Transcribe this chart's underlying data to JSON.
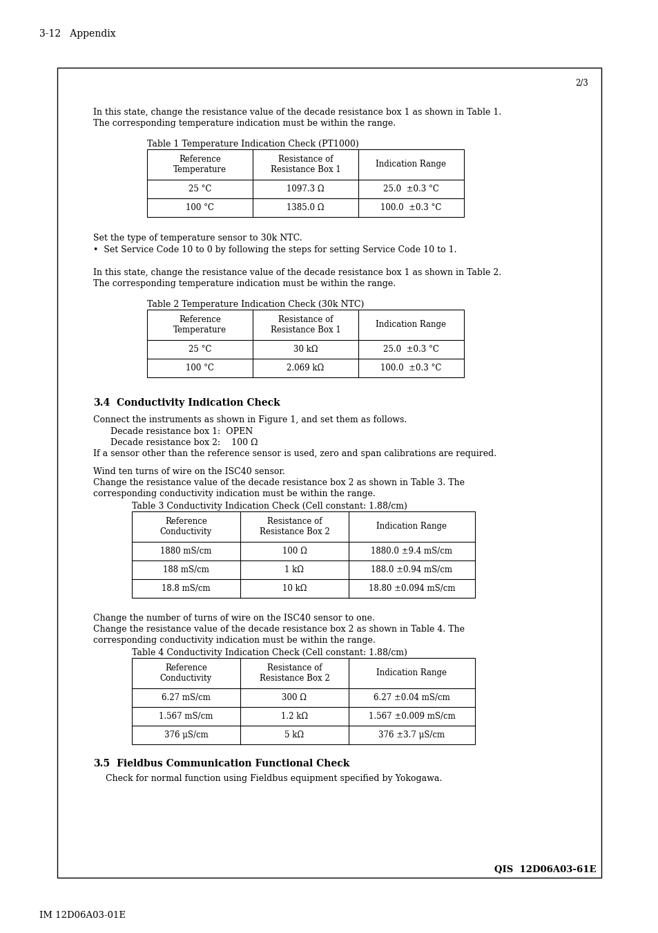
{
  "page_header": "3-12   Appendix",
  "page_footer": "IM 12D06A03-01E",
  "box_page_num": "2/3",
  "box_footer": "QIS  12D06A03-61E",
  "para1_line1": "In this state, change the resistance value of the decade resistance box 1 as shown in Table 1.",
  "para1_line2": "The corresponding temperature indication must be within the range.",
  "table1_title": "Table 1 Temperature Indication Check (PT1000)",
  "table1_headers": [
    "Reference\nTemperature",
    "Resistance of\nResistance Box 1",
    "Indication Range"
  ],
  "table1_rows": [
    [
      "25 °C",
      "1097.3 Ω",
      "25.0  ±0.3 °C"
    ],
    [
      "100 °C",
      "1385.0 Ω",
      "100.0  ±0.3 °C"
    ]
  ],
  "para2a": "Set the type of temperature sensor to 30k NTC.",
  "para2b": "•  Set Service Code 10 to 0 by following the steps for setting Service Code 10 to 1.",
  "para3_line1": "In this state, change the resistance value of the decade resistance box 1 as shown in Table 2.",
  "para3_line2": "The corresponding temperature indication must be within the range.",
  "table2_title": "Table 2 Temperature Indication Check (30k NTC)",
  "table2_headers": [
    "Reference\nTemperature",
    "Resistance of\nResistance Box 1",
    "Indication Range"
  ],
  "table2_rows": [
    [
      "25 °C",
      "30 kΩ",
      "25.0  ±0.3 °C"
    ],
    [
      "100 °C",
      "2.069 kΩ",
      "100.0  ±0.3 °C"
    ]
  ],
  "section34_num": "3.4",
  "section34_text": "Conductivity Indication Check",
  "para4_line1": "Connect the instruments as shown in Figure 1, and set them as follows.",
  "para4a": "Decade resistance box 1:  OPEN",
  "para4b": "Decade resistance box 2:    100 Ω",
  "para4c": "If a sensor other than the reference sensor is used, zero and span calibrations are required.",
  "para5a": "Wind ten turns of wire on the ISC40 sensor.",
  "para5b_line1": "Change the resistance value of the decade resistance box 2 as shown in Table 3. The",
  "para5b_line2": "corresponding conductivity indication must be within the range.",
  "table3_title": "Table 3 Conductivity Indication Check (Cell constant: 1.88/cm)",
  "table3_headers": [
    "Reference\nConductivity",
    "Resistance of\nResistance Box 2",
    "Indication Range"
  ],
  "table3_rows": [
    [
      "1880 mS/cm",
      "100 Ω",
      "1880.0 ±9.4 mS/cm"
    ],
    [
      "188 mS/cm",
      "1 kΩ",
      "188.0 ±0.94 mS/cm"
    ],
    [
      "18.8 mS/cm",
      "10 kΩ",
      "18.80 ±0.094 mS/cm"
    ]
  ],
  "para6a": "Change the number of turns of wire on the ISC40 sensor to one.",
  "para6b_line1": "Change the resistance value of the decade resistance box 2 as shown in Table 4. The",
  "para6b_line2": "corresponding conductivity indication must be within the range.",
  "table4_title": "Table 4 Conductivity Indication Check (Cell constant: 1.88/cm)",
  "table4_headers": [
    "Reference\nConductivity",
    "Resistance of\nResistance Box 2",
    "Indication Range"
  ],
  "table4_rows": [
    [
      "6.27 mS/cm",
      "300 Ω",
      "6.27 ±0.04 mS/cm"
    ],
    [
      "1.567 mS/cm",
      "1.2 kΩ",
      "1.567 ±0.009 mS/cm"
    ],
    [
      "376 μS/cm",
      "5 kΩ",
      "376 ±3.7 μS/cm"
    ]
  ],
  "section35_num": "3.5",
  "section35_text": "Fieldbus Communication Functional Check",
  "para7": "Check for normal function using Fieldbus equipment specified by Yokogawa.",
  "bg_color": "#ffffff",
  "border_color": "#000000",
  "text_color": "#000000"
}
